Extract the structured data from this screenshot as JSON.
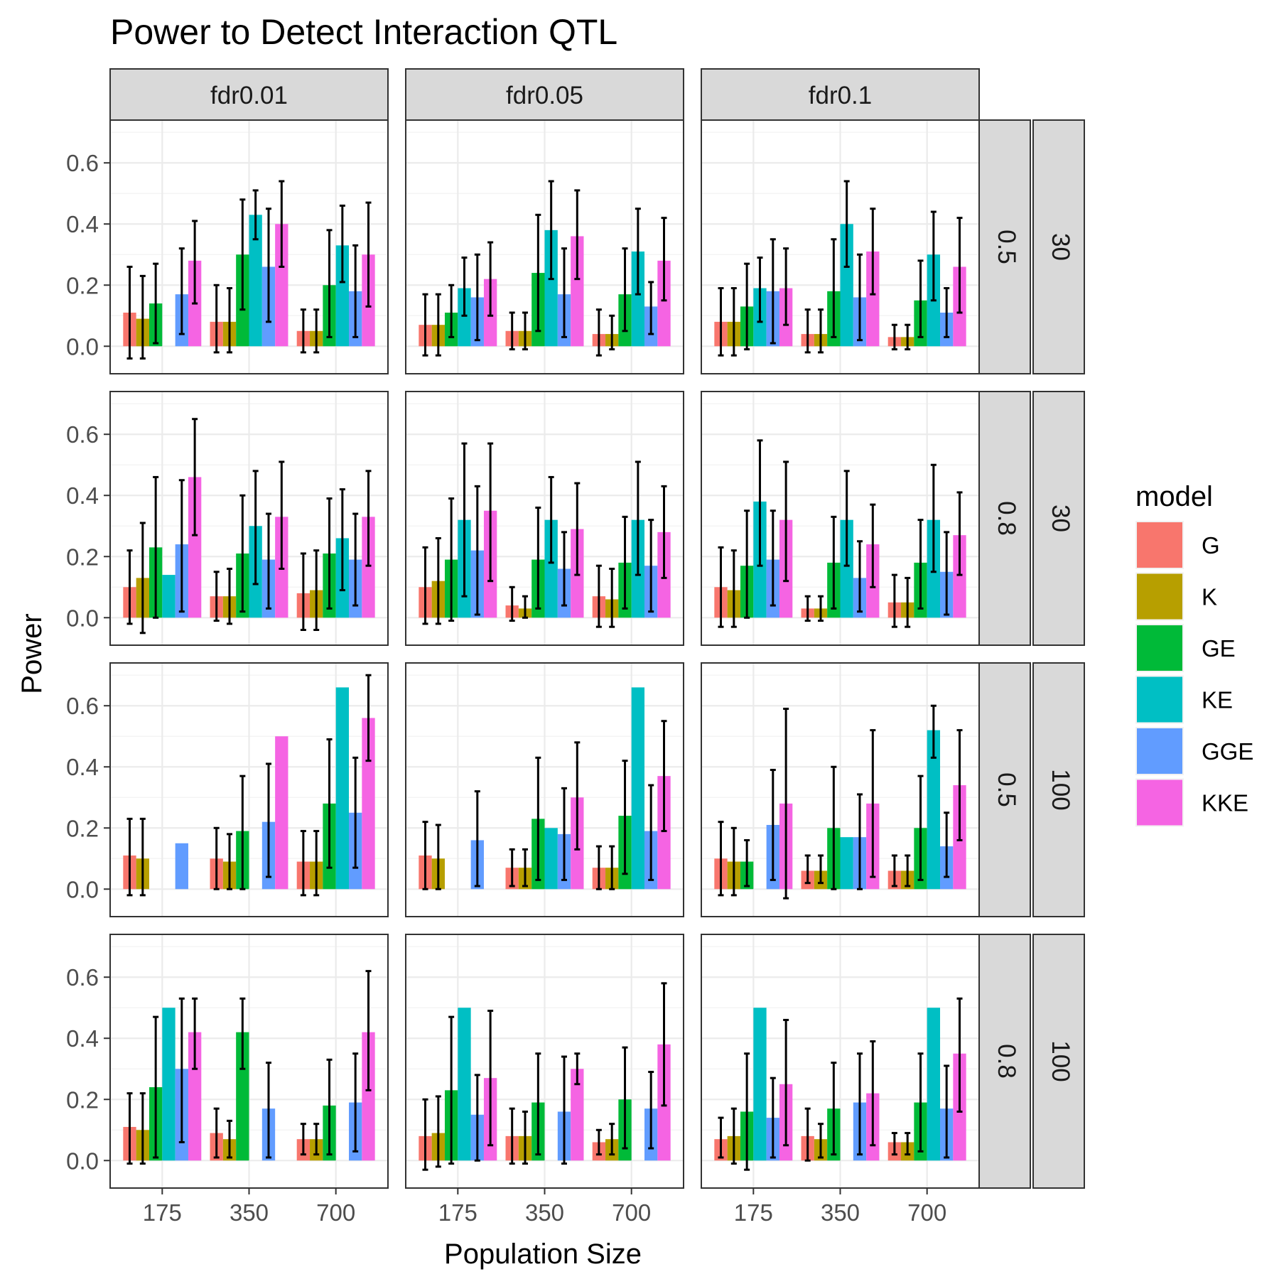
{
  "chart_data": {
    "type": "bar",
    "title": "Power to Detect Interaction QTL",
    "xlabel": "Population Size",
    "ylabel": "Power",
    "ylim": [
      -0.09,
      0.74
    ],
    "yticks": [
      0.0,
      0.2,
      0.4,
      0.6
    ],
    "ytick_labels": [
      "0.0",
      "0.2",
      "0.4",
      "0.6"
    ],
    "categories": [
      "175",
      "350",
      "700"
    ],
    "grid": true,
    "legend": {
      "title": "model",
      "position": "right",
      "entries": [
        "G",
        "K",
        "GE",
        "KE",
        "GGE",
        "KKE"
      ],
      "colors": [
        "#F8766D",
        "#B79F00",
        "#00BA38",
        "#00BFC4",
        "#619CFF",
        "#F564E3"
      ]
    },
    "col_facets": [
      "fdr0.01",
      "fdr0.05",
      "fdr0.1"
    ],
    "row_facets": [
      [
        "0.5",
        "30"
      ],
      [
        "0.8",
        "30"
      ],
      [
        "0.5",
        "100"
      ],
      [
        "0.8",
        "100"
      ]
    ],
    "panels": [
      [
        {
          "values": [
            [
              0.11,
              0.09,
              0.14,
              null,
              0.17,
              0.28
            ],
            [
              0.08,
              0.08,
              0.3,
              0.43,
              0.26,
              0.4
            ],
            [
              0.05,
              0.05,
              0.2,
              0.33,
              0.18,
              0.3
            ]
          ],
          "lower": [
            [
              -0.04,
              -0.04,
              0.01,
              null,
              0.04,
              0.14
            ],
            [
              -0.02,
              -0.02,
              0.12,
              0.35,
              0.08,
              0.26
            ],
            [
              -0.02,
              -0.02,
              0.03,
              0.21,
              0.03,
              0.13
            ]
          ],
          "upper": [
            [
              0.26,
              0.23,
              0.27,
              null,
              0.32,
              0.41
            ],
            [
              0.2,
              0.19,
              0.48,
              0.51,
              0.45,
              0.54
            ],
            [
              0.12,
              0.12,
              0.38,
              0.46,
              0.33,
              0.47
            ]
          ]
        },
        {
          "values": [
            [
              0.07,
              0.07,
              0.11,
              0.19,
              0.16,
              0.22
            ],
            [
              0.05,
              0.05,
              0.24,
              0.38,
              0.17,
              0.36
            ],
            [
              0.04,
              0.04,
              0.17,
              0.31,
              0.13,
              0.28
            ]
          ],
          "lower": [
            [
              -0.03,
              -0.03,
              0.03,
              0.1,
              0.02,
              0.1
            ],
            [
              -0.01,
              -0.01,
              0.05,
              0.22,
              0.03,
              0.22
            ],
            [
              -0.03,
              -0.01,
              0.05,
              0.17,
              0.04,
              0.15
            ]
          ],
          "upper": [
            [
              0.17,
              0.17,
              0.2,
              0.29,
              0.3,
              0.34
            ],
            [
              0.11,
              0.11,
              0.43,
              0.54,
              0.32,
              0.51
            ],
            [
              0.12,
              0.1,
              0.32,
              0.45,
              0.21,
              0.42
            ]
          ]
        },
        {
          "values": [
            [
              0.08,
              0.08,
              0.13,
              0.19,
              0.18,
              0.19
            ],
            [
              0.04,
              0.04,
              0.18,
              0.4,
              0.16,
              0.31
            ],
            [
              0.03,
              0.03,
              0.15,
              0.3,
              0.11,
              0.26
            ]
          ],
          "lower": [
            [
              -0.03,
              -0.03,
              -0.01,
              0.08,
              0.01,
              0.07
            ],
            [
              -0.02,
              -0.02,
              0.03,
              0.26,
              0.02,
              0.17
            ],
            [
              -0.01,
              -0.01,
              0.03,
              0.15,
              0.03,
              0.11
            ]
          ],
          "upper": [
            [
              0.19,
              0.19,
              0.27,
              0.29,
              0.35,
              0.32
            ],
            [
              0.12,
              0.12,
              0.35,
              0.54,
              0.3,
              0.45
            ],
            [
              0.07,
              0.07,
              0.28,
              0.44,
              0.19,
              0.42
            ]
          ]
        }
      ],
      [
        {
          "values": [
            [
              0.1,
              0.13,
              0.23,
              0.14,
              0.24,
              0.46
            ],
            [
              0.07,
              0.07,
              0.21,
              0.3,
              0.19,
              0.33
            ],
            [
              0.08,
              0.09,
              0.21,
              0.26,
              0.19,
              0.33
            ]
          ],
          "lower": [
            [
              -0.02,
              -0.05,
              0.0,
              null,
              0.02,
              0.27
            ],
            [
              -0.01,
              -0.02,
              0.02,
              0.11,
              0.03,
              0.16
            ],
            [
              -0.04,
              -0.04,
              0.03,
              0.09,
              0.04,
              0.17
            ]
          ],
          "upper": [
            [
              0.22,
              0.31,
              0.46,
              null,
              0.45,
              0.65
            ],
            [
              0.15,
              0.16,
              0.4,
              0.48,
              0.34,
              0.51
            ],
            [
              0.21,
              0.22,
              0.39,
              0.42,
              0.34,
              0.48
            ]
          ]
        },
        {
          "values": [
            [
              0.1,
              0.12,
              0.19,
              0.32,
              0.22,
              0.35
            ],
            [
              0.04,
              0.03,
              0.19,
              0.32,
              0.16,
              0.29
            ],
            [
              0.07,
              0.06,
              0.18,
              0.32,
              0.17,
              0.28
            ]
          ],
          "lower": [
            [
              -0.02,
              -0.02,
              -0.01,
              0.07,
              0.01,
              0.12
            ],
            [
              -0.01,
              0.0,
              0.03,
              0.18,
              0.04,
              0.14
            ],
            [
              -0.03,
              -0.03,
              0.03,
              0.14,
              0.02,
              0.13
            ]
          ],
          "upper": [
            [
              0.23,
              0.26,
              0.39,
              0.57,
              0.43,
              0.57
            ],
            [
              0.1,
              0.07,
              0.36,
              0.46,
              0.28,
              0.44
            ],
            [
              0.17,
              0.16,
              0.33,
              0.51,
              0.32,
              0.43
            ]
          ]
        },
        {
          "values": [
            [
              0.1,
              0.09,
              0.17,
              0.38,
              0.19,
              0.32
            ],
            [
              0.03,
              0.03,
              0.18,
              0.32,
              0.13,
              0.24
            ],
            [
              0.05,
              0.05,
              0.18,
              0.32,
              0.15,
              0.27
            ]
          ],
          "lower": [
            [
              -0.03,
              -0.03,
              0.0,
              0.17,
              0.04,
              0.12
            ],
            [
              -0.01,
              -0.01,
              0.03,
              0.17,
              0.02,
              0.1
            ],
            [
              -0.03,
              -0.03,
              0.03,
              0.15,
              0.01,
              0.14
            ]
          ],
          "upper": [
            [
              0.23,
              0.22,
              0.35,
              0.58,
              0.35,
              0.51
            ],
            [
              0.07,
              0.07,
              0.33,
              0.48,
              0.25,
              0.37
            ],
            [
              0.14,
              0.13,
              0.32,
              0.5,
              0.28,
              0.41
            ]
          ]
        }
      ],
      [
        {
          "values": [
            [
              0.11,
              0.1,
              null,
              null,
              0.15,
              null
            ],
            [
              0.1,
              0.09,
              0.19,
              null,
              0.22,
              0.5
            ],
            [
              0.09,
              0.09,
              0.28,
              0.66,
              0.25,
              0.56
            ]
          ],
          "lower": [
            [
              -0.02,
              -0.02,
              null,
              null,
              null,
              null
            ],
            [
              0.0,
              0.0,
              0.0,
              null,
              0.04,
              null
            ],
            [
              -0.02,
              -0.02,
              0.07,
              null,
              0.07,
              0.42
            ]
          ],
          "upper": [
            [
              0.23,
              0.23,
              null,
              null,
              null,
              null
            ],
            [
              0.2,
              0.18,
              0.37,
              null,
              0.41,
              null
            ],
            [
              0.19,
              0.19,
              0.49,
              null,
              0.43,
              0.7
            ]
          ]
        },
        {
          "values": [
            [
              0.11,
              0.1,
              null,
              null,
              0.16,
              null
            ],
            [
              0.07,
              0.07,
              0.23,
              0.2,
              0.18,
              0.3
            ],
            [
              0.07,
              0.07,
              0.24,
              0.66,
              0.19,
              0.37
            ]
          ],
          "lower": [
            [
              0.0,
              0.0,
              null,
              null,
              0.01,
              null
            ],
            [
              0.01,
              0.01,
              0.03,
              null,
              0.03,
              0.13
            ],
            [
              0.0,
              0.0,
              0.05,
              null,
              0.03,
              0.19
            ]
          ],
          "upper": [
            [
              0.22,
              0.21,
              null,
              null,
              0.32,
              null
            ],
            [
              0.13,
              0.13,
              0.43,
              null,
              0.33,
              0.48
            ],
            [
              0.14,
              0.14,
              0.42,
              null,
              0.34,
              0.55
            ]
          ]
        },
        {
          "values": [
            [
              0.1,
              0.09,
              0.09,
              null,
              0.21,
              0.28
            ],
            [
              0.06,
              0.06,
              0.2,
              0.17,
              0.17,
              0.28
            ],
            [
              0.06,
              0.06,
              0.2,
              0.52,
              0.14,
              0.34
            ]
          ],
          "lower": [
            [
              -0.02,
              -0.02,
              0.01,
              null,
              0.03,
              -0.03
            ],
            [
              0.02,
              0.02,
              0.0,
              null,
              0.0,
              0.04
            ],
            [
              0.01,
              0.01,
              0.03,
              0.43,
              0.04,
              0.16
            ]
          ],
          "upper": [
            [
              0.22,
              0.2,
              0.16,
              null,
              0.39,
              0.59
            ],
            [
              0.11,
              0.11,
              0.4,
              null,
              0.31,
              0.52
            ],
            [
              0.11,
              0.11,
              0.37,
              0.6,
              0.25,
              0.52
            ]
          ]
        }
      ],
      [
        {
          "values": [
            [
              0.11,
              0.1,
              0.24,
              0.5,
              0.3,
              0.42
            ],
            [
              0.09,
              0.07,
              0.42,
              null,
              0.17,
              null
            ],
            [
              0.07,
              0.07,
              0.18,
              null,
              0.19,
              0.42
            ]
          ],
          "lower": [
            [
              -0.01,
              -0.01,
              0.01,
              null,
              0.06,
              0.3
            ],
            [
              0.01,
              0.01,
              0.3,
              null,
              0.01,
              null
            ],
            [
              0.02,
              0.02,
              0.02,
              null,
              0.03,
              0.23
            ]
          ],
          "upper": [
            [
              0.22,
              0.22,
              0.47,
              null,
              0.53,
              0.53
            ],
            [
              0.17,
              0.13,
              0.53,
              null,
              0.32,
              null
            ],
            [
              0.12,
              0.12,
              0.33,
              null,
              0.35,
              0.62
            ]
          ]
        },
        {
          "values": [
            [
              0.08,
              0.09,
              0.23,
              0.5,
              0.15,
              0.27
            ],
            [
              0.08,
              0.08,
              0.19,
              null,
              0.16,
              0.3
            ],
            [
              0.06,
              0.07,
              0.2,
              null,
              0.17,
              0.38
            ]
          ],
          "lower": [
            [
              -0.03,
              -0.02,
              -0.01,
              null,
              0.0,
              0.05
            ],
            [
              -0.01,
              -0.01,
              0.02,
              null,
              -0.01,
              0.25
            ],
            [
              0.02,
              0.02,
              0.04,
              null,
              0.04,
              0.18
            ]
          ],
          "upper": [
            [
              0.2,
              0.21,
              0.47,
              null,
              0.28,
              0.49
            ],
            [
              0.17,
              0.16,
              0.35,
              null,
              0.34,
              0.35
            ],
            [
              0.1,
              0.12,
              0.37,
              null,
              0.29,
              0.58
            ]
          ]
        },
        {
          "values": [
            [
              0.07,
              0.08,
              0.16,
              0.5,
              0.14,
              0.25
            ],
            [
              0.08,
              0.07,
              0.17,
              null,
              0.19,
              0.22
            ],
            [
              0.06,
              0.06,
              0.19,
              0.5,
              0.17,
              0.35
            ]
          ],
          "lower": [
            [
              0.01,
              -0.01,
              -0.03,
              null,
              0.01,
              0.05
            ],
            [
              0.0,
              0.01,
              0.02,
              null,
              0.02,
              0.05
            ],
            [
              0.02,
              0.02,
              0.03,
              null,
              0.01,
              0.16
            ]
          ],
          "upper": [
            [
              0.14,
              0.17,
              0.35,
              null,
              0.27,
              0.46
            ],
            [
              0.17,
              0.12,
              0.32,
              null,
              0.35,
              0.39
            ],
            [
              0.09,
              0.09,
              0.35,
              null,
              0.31,
              0.53
            ]
          ]
        }
      ]
    ]
  }
}
